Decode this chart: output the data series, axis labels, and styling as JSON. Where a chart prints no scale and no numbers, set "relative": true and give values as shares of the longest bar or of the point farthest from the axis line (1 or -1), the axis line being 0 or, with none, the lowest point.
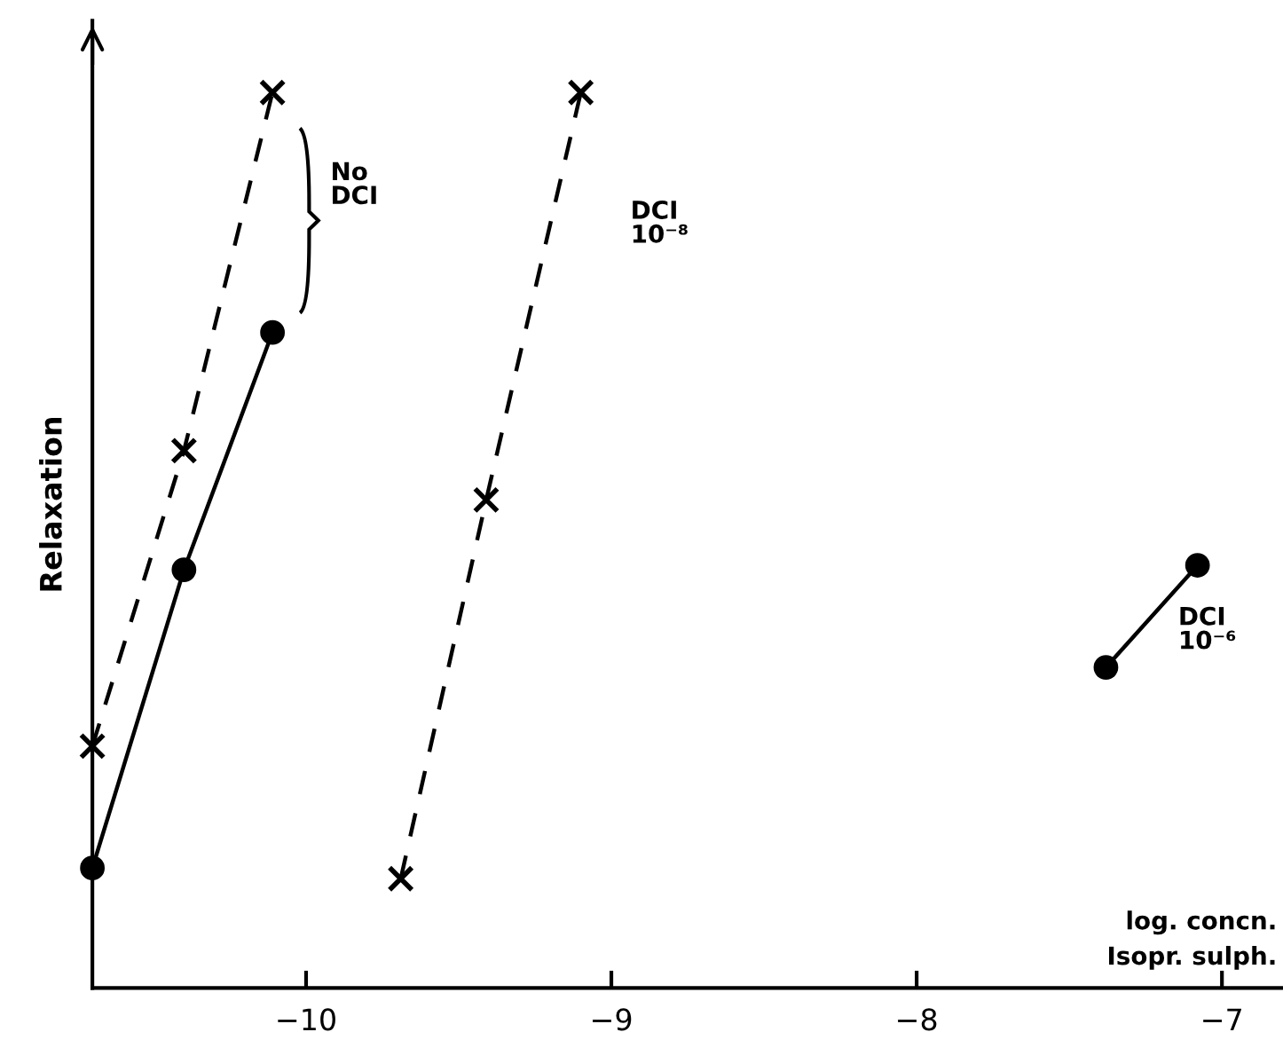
{
  "chart_data": {
    "type": "line",
    "relative": true,
    "ylabel": "Relaxation",
    "xlabel": "log. concn.\nIsopr. sulph.",
    "xlim": [
      -10.7,
      -6.8
    ],
    "xticks": [
      {
        "value": -10,
        "label": "−10"
      },
      {
        "value": -9,
        "label": "−9"
      },
      {
        "value": -8,
        "label": "−8"
      },
      {
        "value": -7,
        "label": "−7"
      }
    ],
    "tick_labels": "x",
    "grid": false,
    "legend": false,
    "series": [
      {
        "color": "#000000",
        "marker": "cross",
        "line_style": "dashed",
        "x": [
          -10.7,
          -10.4,
          -10.11
        ],
        "values": [
          0.27,
          0.6,
          1.0
        ]
      },
      {
        "color": "#000000",
        "marker": "circle",
        "line_style": "solid",
        "x": [
          -10.7,
          -10.4,
          -10.11
        ],
        "values": [
          0.134,
          0.467,
          0.732
        ]
      },
      {
        "color": "#000000",
        "marker": "cross",
        "line_style": "dashed",
        "x": [
          -9.69,
          -9.41,
          -9.1
        ],
        "values": [
          0.122,
          0.545,
          1.0
        ]
      },
      {
        "color": "#000000",
        "marker": "circle",
        "line_style": "solid",
        "x": [
          -7.38,
          -7.08
        ],
        "values": [
          0.358,
          0.472
        ]
      }
    ],
    "annotations": [
      "No\nDCI",
      "DCI\n10⁻⁸",
      "DCI\n10⁻⁶"
    ]
  }
}
